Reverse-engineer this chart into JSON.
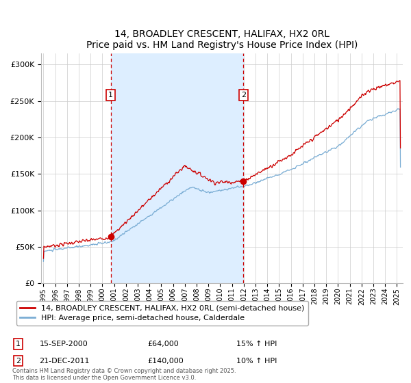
{
  "title": "14, BROADLEY CRESCENT, HALIFAX, HX2 0RL",
  "subtitle": "Price paid vs. HM Land Registry's House Price Index (HPI)",
  "ylabel_ticks": [
    0,
    50000,
    100000,
    150000,
    200000,
    250000,
    300000
  ],
  "ylim": [
    0,
    315000
  ],
  "xlim_start": 1994.8,
  "xlim_end": 2025.5,
  "line_color_red": "#cc0000",
  "line_color_blue": "#7aadd4",
  "shade_color": "#ddeeff",
  "purchase1_year": 2000.71,
  "purchase1_price": 64000,
  "purchase1_date": "15-SEP-2000",
  "purchase1_hpi_pct": "15% ↑ HPI",
  "purchase2_year": 2011.97,
  "purchase2_price": 140000,
  "purchase2_date": "21-DEC-2011",
  "purchase2_hpi_pct": "10% ↑ HPI",
  "legend_line1": "14, BROADLEY CRESCENT, HALIFAX, HX2 0RL (semi-detached house)",
  "legend_line2": "HPI: Average price, semi-detached house, Calderdale",
  "footer": "Contains HM Land Registry data © Crown copyright and database right 2025.\nThis data is licensed under the Open Government Licence v3.0.",
  "background_color": "#ffffff"
}
